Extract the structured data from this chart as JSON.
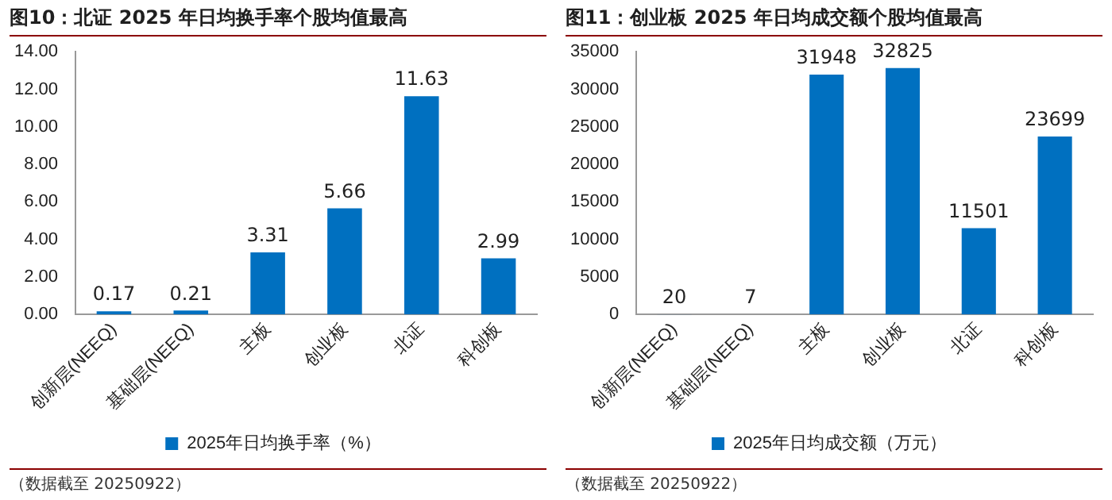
{
  "chart_data": [
    {
      "type": "bar",
      "title": "图10：北证 2025 年日均换手率个股均值最高",
      "categories": [
        "创新层(NEEQ)",
        "基础层(NEEQ)",
        "主板",
        "创业板",
        "北证",
        "科创板"
      ],
      "series": [
        {
          "name": "2025年日均换手率（%）",
          "color": "#0070c0",
          "values": [
            0.17,
            0.21,
            3.31,
            5.66,
            11.63,
            2.99
          ]
        }
      ],
      "ylim": [
        0,
        14
      ],
      "yticks": [
        {
          "value": 0,
          "label": "0.00"
        },
        {
          "value": 2,
          "label": "2.00"
        },
        {
          "value": 4,
          "label": "4.00"
        },
        {
          "value": 6,
          "label": "6.00"
        },
        {
          "value": 8,
          "label": "8.00"
        },
        {
          "value": 10,
          "label": "10.00"
        },
        {
          "value": 12,
          "label": "12.00"
        },
        {
          "value": 14,
          "label": "14.00"
        }
      ],
      "data_labels": true,
      "grid": false,
      "legend": "bottom",
      "annotations": [
        "（数据截至 20250922）"
      ]
    },
    {
      "type": "bar",
      "title": "图11：创业板 2025 年日均成交额个股均值最高",
      "categories": [
        "创新层(NEEQ)",
        "基础层(NEEQ)",
        "主板",
        "创业板",
        "北证",
        "科创板"
      ],
      "series": [
        {
          "name": "2025年日均成交额（万元）",
          "color": "#0070c0",
          "values": [
            20,
            7,
            31948,
            32825,
            11501,
            23699
          ]
        }
      ],
      "ylim": [
        0,
        35000
      ],
      "yticks": [
        0,
        5000,
        10000,
        15000,
        20000,
        25000,
        30000,
        35000
      ],
      "data_labels": true,
      "grid": false,
      "legend": "bottom",
      "annotations": [
        "（数据截至 20250922）"
      ]
    }
  ]
}
